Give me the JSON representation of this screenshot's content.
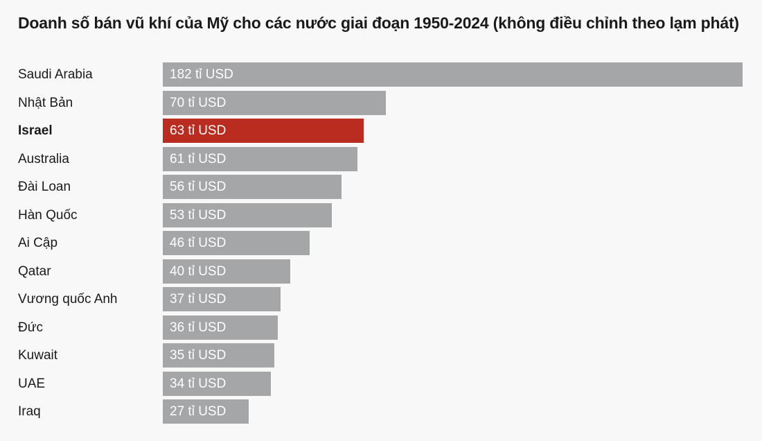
{
  "chart_data": {
    "type": "bar",
    "orientation": "horizontal",
    "title": "Doanh số bán vũ khí của Mỹ cho các nước giai đoạn 1950-2024 (không điều chỉnh theo lạm phát)",
    "xlabel": "",
    "ylabel": "",
    "categories": [
      "Saudi Arabia",
      "Nhật Bản",
      "Israel",
      "Australia",
      "Đài Loan",
      "Hàn Quốc",
      "Ai Cập",
      "Qatar",
      "Vương quốc Anh",
      "Đức",
      "Kuwait",
      "UAE",
      "Iraq"
    ],
    "values": [
      182,
      70,
      63,
      61,
      56,
      53,
      46,
      40,
      37,
      36,
      35,
      34,
      27
    ],
    "data_labels": [
      "182 tỉ USD",
      "70 tỉ USD",
      "63 tỉ USD",
      "61 tỉ USD",
      "56 tỉ USD",
      "53 tỉ USD",
      "46 tỉ USD",
      "40 tỉ USD",
      "37 tỉ USD",
      "36 tỉ USD",
      "35 tỉ USD",
      "34 tỉ USD",
      "27 tỉ USD"
    ],
    "highlight": "Israel",
    "xlim": [
      0,
      182
    ],
    "grid": false,
    "legend": "none"
  },
  "colors": {
    "bar": "#a5a6a8",
    "highlight": "#b92c1f",
    "background": "#f8f8f8",
    "label_text": "#ffffff",
    "category_text": "#1a1a1a"
  }
}
